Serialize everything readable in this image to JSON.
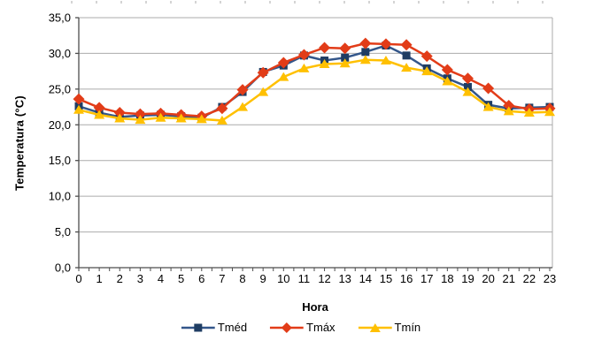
{
  "chart_data": {
    "type": "line",
    "title": "",
    "xlabel": "Hora",
    "ylabel": "Temperatura (°C)",
    "categories": [
      "0",
      "1",
      "2",
      "3",
      "4",
      "5",
      "6",
      "7",
      "8",
      "9",
      "10",
      "11",
      "12",
      "13",
      "14",
      "15",
      "16",
      "17",
      "18",
      "19",
      "20",
      "21",
      "22",
      "23"
    ],
    "series": [
      {
        "name": "Tméd",
        "marker": "square",
        "marker_color": "#1F3D63",
        "line_color": "#33568A",
        "values": [
          22.6,
          21.7,
          21.1,
          21.3,
          21.4,
          21.2,
          21.0,
          22.5,
          24.6,
          27.4,
          28.3,
          29.7,
          29.0,
          29.4,
          30.2,
          31.1,
          29.7,
          27.9,
          26.5,
          25.3,
          22.8,
          22.3,
          22.4,
          22.5
        ]
      },
      {
        "name": "Tmáx",
        "marker": "diamond",
        "marker_color": "#E23C18",
        "line_color": "#E23C18",
        "values": [
          23.6,
          22.4,
          21.7,
          21.5,
          21.6,
          21.4,
          21.2,
          22.3,
          24.9,
          27.3,
          28.7,
          29.8,
          30.8,
          30.7,
          31.4,
          31.3,
          31.2,
          29.6,
          27.7,
          26.5,
          25.1,
          22.7,
          22.2,
          22.3
        ]
      },
      {
        "name": "Tmín",
        "marker": "triangle",
        "marker_color": "#FFC000",
        "line_color": "#FFC000",
        "values": [
          22.1,
          21.4,
          20.9,
          20.7,
          21.0,
          20.9,
          20.8,
          20.6,
          22.5,
          24.6,
          26.7,
          27.9,
          28.5,
          28.6,
          29.1,
          29.0,
          28.0,
          27.5,
          26.1,
          24.6,
          22.5,
          21.9,
          21.7,
          21.8
        ]
      }
    ],
    "ylim": [
      0,
      35
    ],
    "ytick_step": 5,
    "ytick_labels": [
      "0,0",
      "5,0",
      "10,0",
      "15,0",
      "20,0",
      "25,0",
      "30,0",
      "35,0"
    ],
    "grid": true,
    "legend_position": "bottom"
  },
  "colors": {
    "grid": "#ABABAB",
    "axis": "#4D4D4D",
    "tick_text": "#000000",
    "background": "#FFFFFF"
  }
}
